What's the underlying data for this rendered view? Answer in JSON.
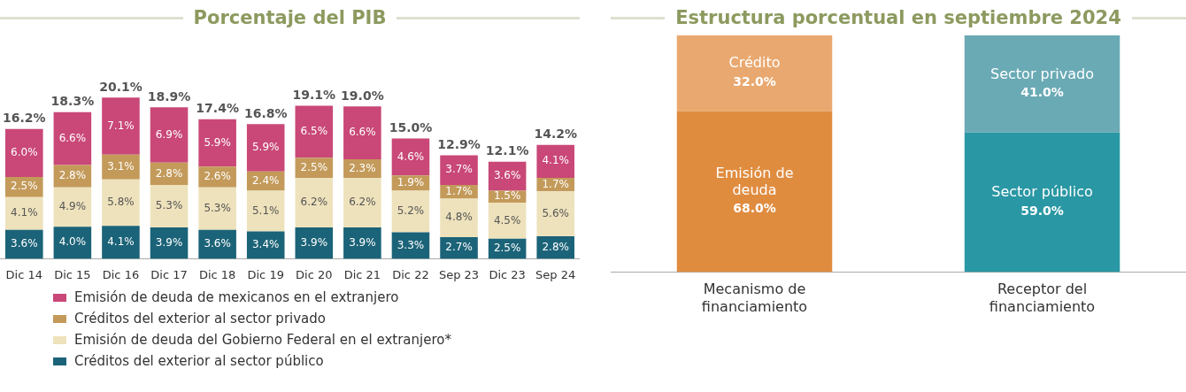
{
  "chart_data": [
    {
      "type": "bar",
      "title": "Porcentaje del PIB",
      "stacked": true,
      "legend": "bottom",
      "categories": [
        "Dic 14",
        "Dic 15",
        "Dic 16",
        "Dic 17",
        "Dic 18",
        "Dic 19",
        "Dic 20",
        "Dic 21",
        "Dic 22",
        "Sep 23",
        "Dic 23",
        "Sep 24"
      ],
      "series": [
        {
          "name": "Créditos del exterior al sector público",
          "color": "#1b6378",
          "values": [
            3.6,
            4.0,
            4.1,
            3.9,
            3.6,
            3.4,
            3.9,
            3.9,
            3.3,
            2.7,
            2.5,
            2.8
          ],
          "value_labels": [
            "3.6%",
            "4.0%",
            "4.1%",
            "3.9%",
            "3.6%",
            "3.4%",
            "3.9%",
            "3.9%",
            "3.3%",
            "2.7%",
            "2.5%",
            "2.8%"
          ]
        },
        {
          "name": "Emisión de deuda del Gobierno Federal en el extranjero*",
          "color": "#eee2bc",
          "values": [
            4.1,
            4.9,
            5.8,
            5.3,
            5.3,
            5.1,
            6.2,
            6.2,
            5.2,
            4.8,
            4.5,
            5.6
          ],
          "value_labels": [
            "4.1%",
            "4.9%",
            "5.8%",
            "5.3%",
            "5.3%",
            "5.1%",
            "6.2%",
            "6.2%",
            "5.2%",
            "4.8%",
            "4.5%",
            "5.6%"
          ]
        },
        {
          "name": "Créditos del exterior al sector privado",
          "color": "#c39a5a",
          "values": [
            2.5,
            2.8,
            3.1,
            2.8,
            2.6,
            2.4,
            2.5,
            2.3,
            1.9,
            1.7,
            1.5,
            1.7
          ],
          "value_labels": [
            "2.5%",
            "2.8%",
            "3.1%",
            "2.8%",
            "2.6%",
            "2.4%",
            "2.5%",
            "2.3%",
            "1.9%",
            "1.7%",
            "1.5%",
            "1.7%"
          ]
        },
        {
          "name": "Emisión de deuda de mexicanos en el extranjero",
          "color": "#c94877",
          "values": [
            6.0,
            6.6,
            7.1,
            6.9,
            5.9,
            5.9,
            6.5,
            6.6,
            4.6,
            3.7,
            3.6,
            4.1
          ],
          "value_labels": [
            "6.0%",
            "6.6%",
            "7.1%",
            "6.9%",
            "5.9%",
            "5.9%",
            "6.5%",
            "6.6%",
            "4.6%",
            "3.7%",
            "3.6%",
            "4.1%"
          ]
        }
      ],
      "totals": [
        "16.2%",
        "18.3%",
        "20.1%",
        "18.9%",
        "17.4%",
        "16.8%",
        "19.1%",
        "19.0%",
        "15.0%",
        "12.9%",
        "12.1%",
        "14.2%"
      ]
    },
    {
      "type": "bar",
      "title": "Estructura porcentual en septiembre 2024",
      "stacked": true,
      "categories": [
        "Mecanismo de financiamiento",
        "Receptor del financiamiento"
      ],
      "series": [
        {
          "name": "Emisión de deuda",
          "color": "#e08c3f",
          "values": [
            68.0,
            null
          ],
          "value_labels": [
            "68.0%",
            null
          ]
        },
        {
          "name": "Crédito",
          "color": "#e9a86f",
          "values": [
            32.0,
            null
          ],
          "value_labels": [
            "32.0%",
            null
          ]
        },
        {
          "name": "Sector público",
          "color": "#2a97a4",
          "values": [
            null,
            59.0
          ],
          "value_labels": [
            null,
            "59.0%"
          ]
        },
        {
          "name": "Sector privado",
          "color": "#6aaab5",
          "values": [
            null,
            41.0
          ],
          "value_labels": [
            null,
            "41.0%"
          ]
        }
      ]
    }
  ]
}
